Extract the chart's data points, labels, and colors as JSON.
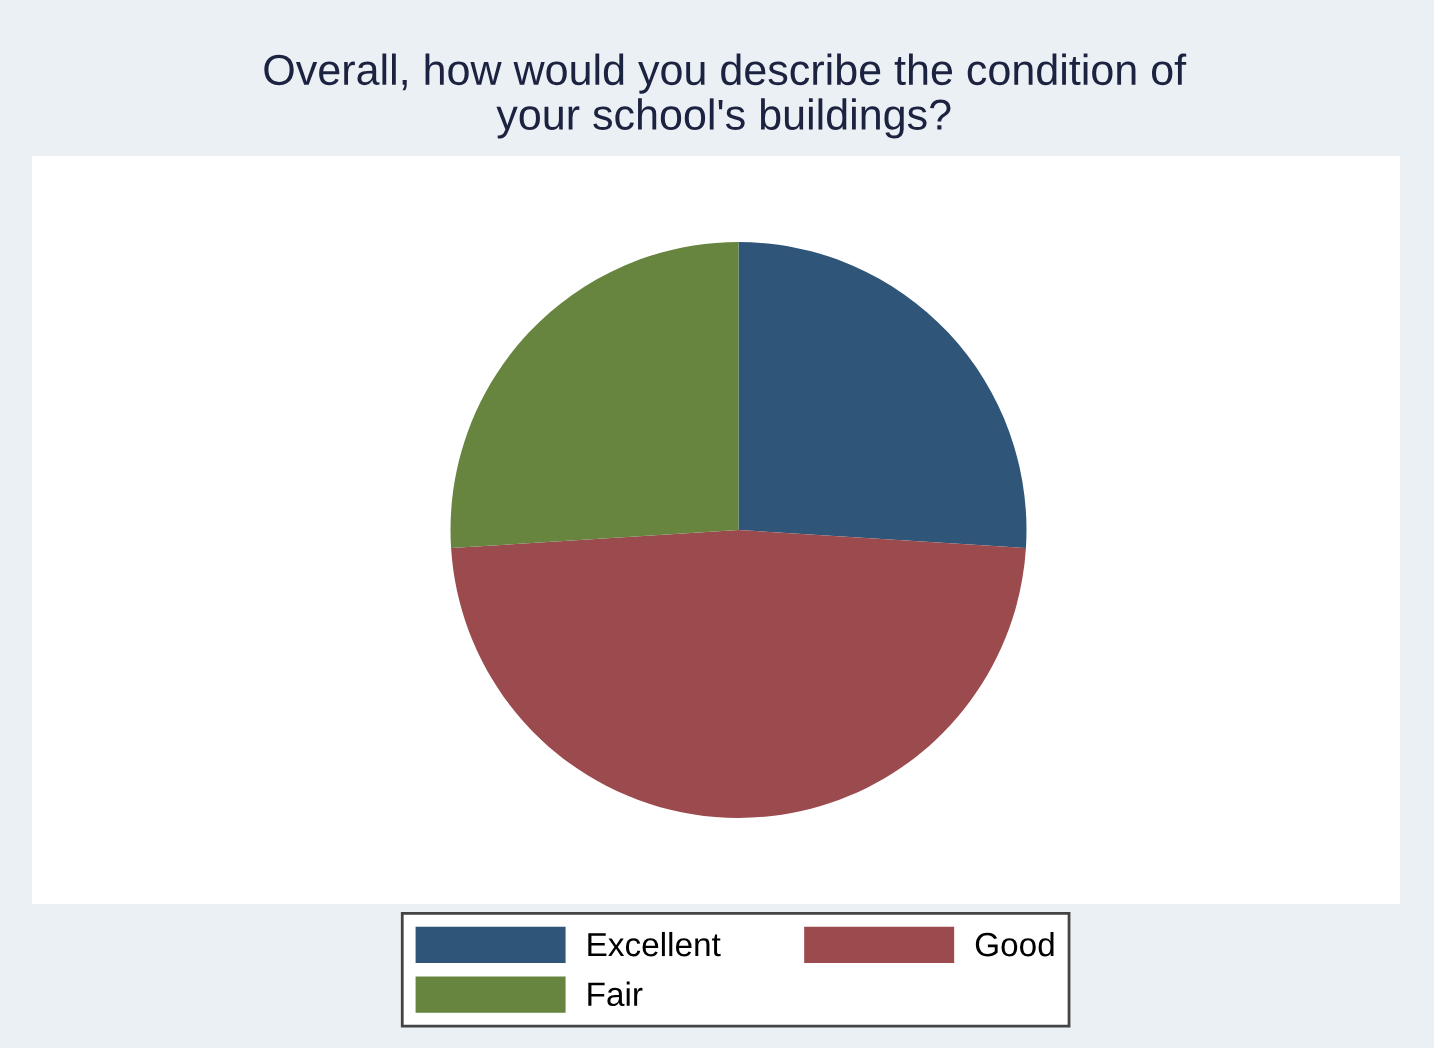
{
  "chart_data": {
    "type": "pie",
    "title": "Overall, how would you describe the condition of\nyour school's buildings?",
    "categories": [
      "Excellent",
      "Good",
      "Fair"
    ],
    "values": [
      26,
      48,
      26
    ],
    "colors": [
      "#2f5679",
      "#9b4a4e",
      "#67853f"
    ],
    "legend": "bottom"
  }
}
